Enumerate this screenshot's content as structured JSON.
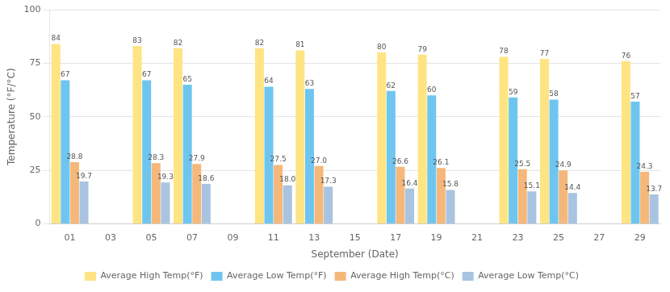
{
  "chart_data": {
    "type": "bar",
    "xlabel": "September (Date)",
    "ylabel": "Temperature (°F/°C)",
    "categories": [
      "01",
      "03",
      "05",
      "07",
      "09",
      "11",
      "13",
      "15",
      "17",
      "19",
      "21",
      "23",
      "25",
      "27",
      "29"
    ],
    "series": [
      {
        "name": "Average High Temp(°F)",
        "color": "#FFE484",
        "values": [
          84,
          null,
          83,
          82,
          null,
          82,
          81,
          null,
          80,
          79,
          null,
          78,
          77,
          null,
          76
        ]
      },
      {
        "name": "Average Low Temp(°F)",
        "color": "#6EC6F0",
        "values": [
          67,
          null,
          67,
          65,
          null,
          64,
          63,
          null,
          62,
          60,
          null,
          59,
          58,
          null,
          57
        ]
      },
      {
        "name": "Average High Temp(°C)",
        "color": "#F5B87A",
        "values": [
          28.8,
          null,
          28.3,
          27.9,
          null,
          27.5,
          27.0,
          null,
          26.6,
          26.1,
          null,
          25.5,
          24.9,
          null,
          24.3
        ],
        "value_labels": [
          "28.8",
          null,
          "28.3",
          "27.9",
          null,
          "27.5",
          "27.0",
          null,
          "26.6",
          "26.1",
          null,
          "25.5",
          "24.9",
          null,
          "24.3"
        ]
      },
      {
        "name": "Average Low Temp(°C)",
        "color": "#A8C4E0",
        "values": [
          19.7,
          null,
          19.3,
          18.6,
          null,
          18.0,
          17.3,
          null,
          16.4,
          15.8,
          null,
          15.1,
          14.4,
          null,
          13.7
        ],
        "value_labels": [
          "19.7",
          null,
          "19.3",
          "18.6",
          null,
          "18.0",
          "17.3",
          null,
          "16.4",
          "15.8",
          null,
          "15.1",
          "14.4",
          null,
          "13.7"
        ]
      }
    ],
    "ylim": [
      0,
      100
    ],
    "yticks": [
      0,
      25,
      50,
      75,
      100
    ],
    "grid": true,
    "legend": "bottom",
    "data_labels": true
  }
}
